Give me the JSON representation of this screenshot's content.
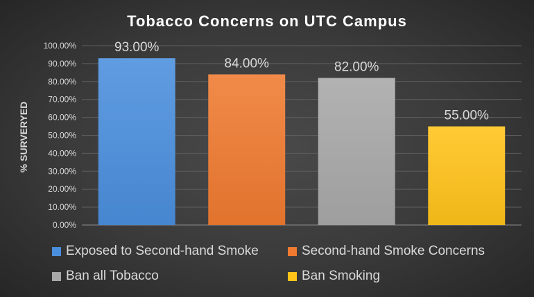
{
  "chart_data": {
    "type": "bar",
    "title": "Tobacco Concerns on UTC Campus",
    "xlabel": "",
    "ylabel": "% SURVERYED",
    "ylim": [
      0,
      100
    ],
    "ytick_labels": [
      "0.00%",
      "10.00%",
      "20.00%",
      "30.00%",
      "40.00%",
      "50.00%",
      "60.00%",
      "70.00%",
      "80.00%",
      "90.00%",
      "100.00%"
    ],
    "grid": true,
    "legend_position": "bottom",
    "categories": [
      "Exposed to Second-hand Smoke",
      "Second-hand Smoke Concerns",
      "Ban all Tobacco",
      "Ban Smoking"
    ],
    "values": [
      93,
      84,
      82,
      55
    ],
    "data_labels": [
      "93.00%",
      "84.00%",
      "82.00%",
      "55.00%"
    ],
    "colors": [
      "#4a8fdd",
      "#ef7a30",
      "#a8a8a8",
      "#ffc31a"
    ]
  }
}
